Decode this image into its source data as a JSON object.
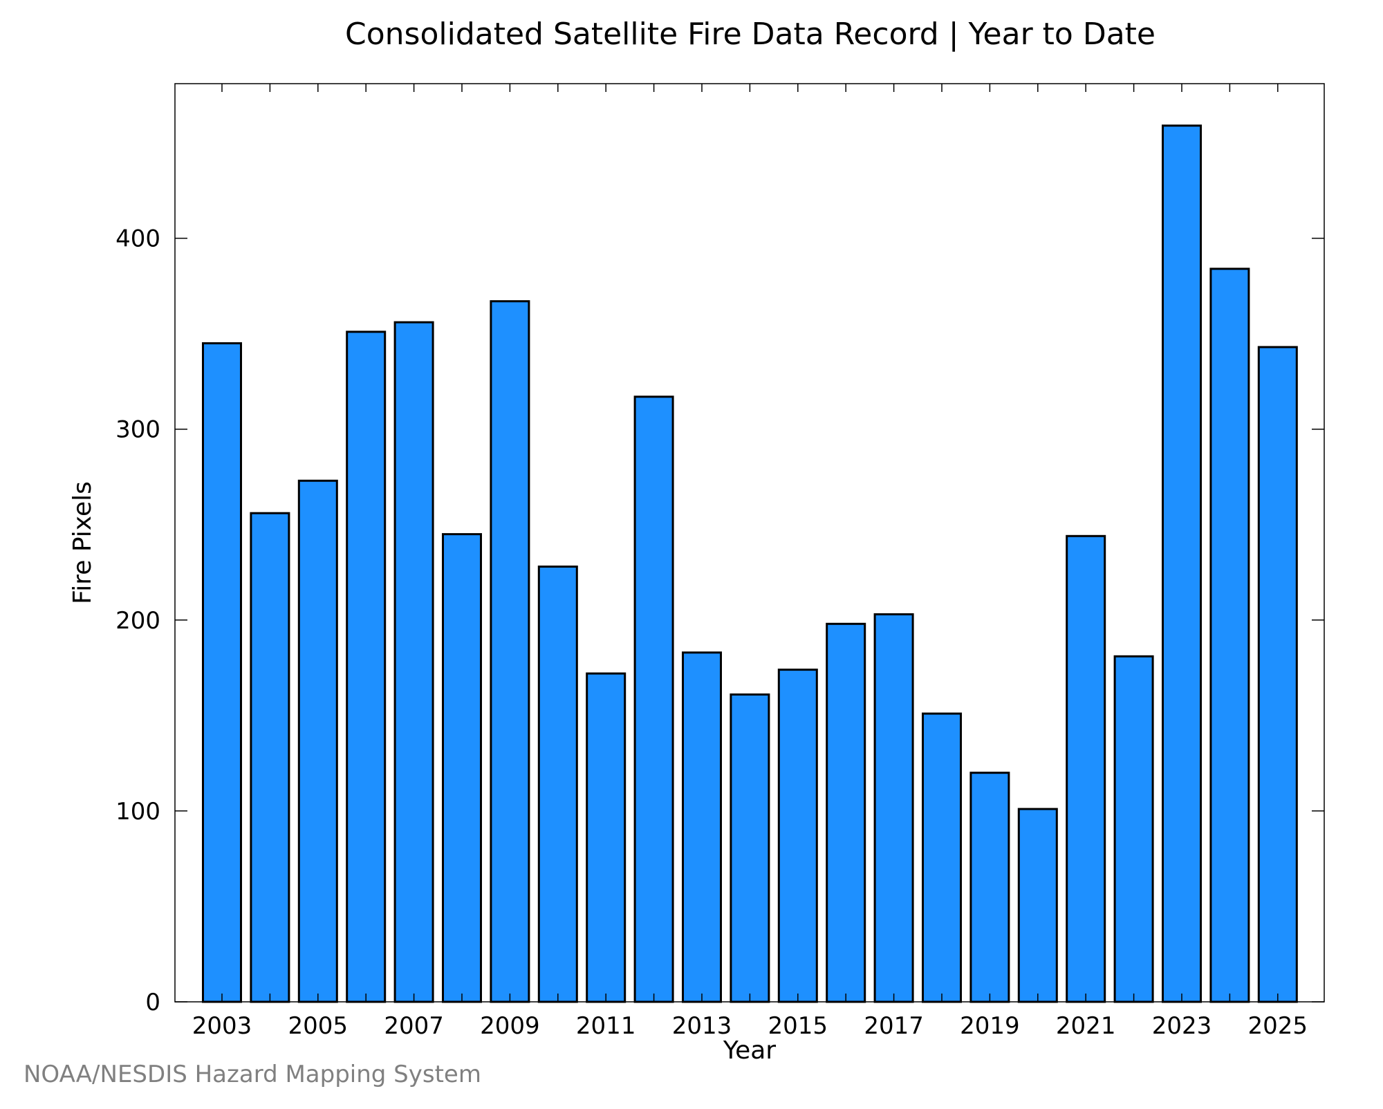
{
  "chart_data": {
    "type": "bar",
    "title": "Consolidated Satellite Fire Data Record | Year to Date",
    "xlabel": "Year",
    "ylabel": "Fire Pixels",
    "ylim": [
      0,
      481
    ],
    "y_ticks": [
      "0",
      "100",
      "200",
      "300",
      "400"
    ],
    "x_tick_labels": [
      "2003",
      "2005",
      "2007",
      "2009",
      "2011",
      "2013",
      "2015",
      "2017",
      "2019",
      "2021",
      "2023",
      "2025"
    ],
    "categories": [
      "2003",
      "2004",
      "2005",
      "2006",
      "2007",
      "2008",
      "2009",
      "2010",
      "2011",
      "2012",
      "2013",
      "2014",
      "2015",
      "2016",
      "2017",
      "2018",
      "2019",
      "2020",
      "2021",
      "2022",
      "2023",
      "2024",
      "2025"
    ],
    "values": [
      345,
      256,
      273,
      351,
      356,
      245,
      367,
      228,
      172,
      317,
      183,
      161,
      174,
      198,
      203,
      151,
      120,
      101,
      244,
      181,
      459,
      384,
      343
    ],
    "bar_color": "#1E90FF",
    "grid": false,
    "legend": "none"
  },
  "footer": {
    "credit": "NOAA/NESDIS Hazard Mapping System"
  }
}
